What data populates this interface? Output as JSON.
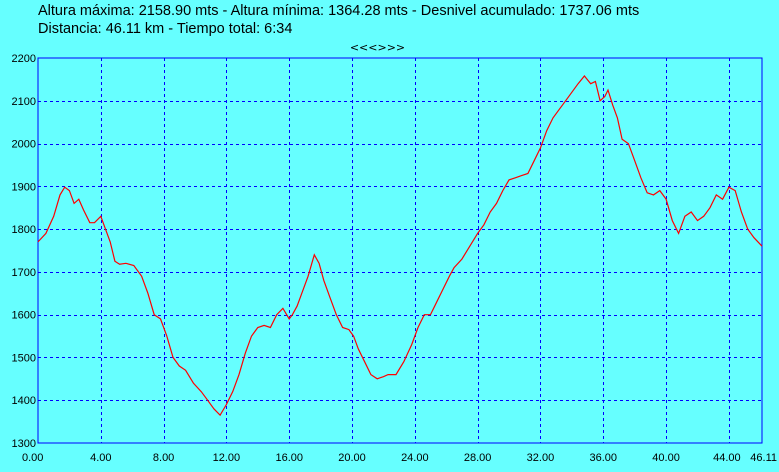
{
  "stats": {
    "line1": "Altura máxima: 2158.90 mts - Altura mínima: 1364.28 mts - Desnivel acumulado: 1737.06 mts",
    "line2": "Distancia: 46.11 km - Tiempo total: 6:34"
  },
  "nav": {
    "label": "<<<>>>"
  },
  "colors": {
    "background": "#66FFFF",
    "frame": "#0000FF",
    "grid": "#0000FF",
    "line": "#FF0000"
  },
  "chart_data": {
    "type": "line",
    "grid": true,
    "xlim": [
      0,
      46.11
    ],
    "ylim": [
      1300,
      2200
    ],
    "x_ticks": [
      "0.00",
      "4.00",
      "8.00",
      "12.00",
      "16.00",
      "20.00",
      "24.00",
      "28.00",
      "32.00",
      "36.00",
      "40.00",
      "44.00",
      "46.11"
    ],
    "x_tick_values": [
      0,
      4,
      8,
      12,
      16,
      20,
      24,
      28,
      32,
      36,
      40,
      44,
      46.11
    ],
    "y_ticks": [
      "1300",
      "1400",
      "1500",
      "1600",
      "1700",
      "1800",
      "1900",
      "2000",
      "2100",
      "2200"
    ],
    "y_tick_values": [
      1300,
      1400,
      1500,
      1600,
      1700,
      1800,
      1900,
      2000,
      2100,
      2200
    ],
    "series": [
      {
        "x": [
          0,
          0.5,
          1,
          1.4,
          1.7,
          2.0,
          2.3,
          2.6,
          2.9,
          3.3,
          3.6,
          4.0,
          4.2,
          4.6,
          4.9,
          5.2,
          5.6,
          6.1,
          6.6,
          7.0,
          7.4,
          7.8,
          8.2,
          8.6,
          9.0,
          9.4,
          9.9,
          10.4,
          10.8,
          11.2,
          11.6,
          12.0,
          12.4,
          12.8,
          13.2,
          13.6,
          14.0,
          14.4,
          14.8,
          15.2,
          15.6,
          16.0,
          16.2,
          16.5,
          16.8,
          17.2,
          17.6,
          17.9,
          18.2,
          18.6,
          19.0,
          19.4,
          19.8,
          20.1,
          20.4,
          20.8,
          21.2,
          21.6,
          22.0,
          22.3,
          22.8,
          23.3,
          23.8,
          24.2,
          24.6,
          25.0,
          25.4,
          25.8,
          26.2,
          26.5,
          27.0,
          27.5,
          28.0,
          28.4,
          28.8,
          29.2,
          29.6,
          30.0,
          30.4,
          30.8,
          31.2,
          31.6,
          32.0,
          32.4,
          32.8,
          33.2,
          33.6,
          34.0,
          34.4,
          34.8,
          35.2,
          35.5,
          35.8,
          36.1,
          36.3,
          36.6,
          36.9,
          37.2,
          37.6,
          38.0,
          38.4,
          38.8,
          39.2,
          39.6,
          40.0,
          40.4,
          40.8,
          41.2,
          41.6,
          42.0,
          42.4,
          42.8,
          43.2,
          43.6,
          44.0,
          44.4,
          44.8,
          45.2,
          45.6,
          46.11
        ],
        "y": [
          1770,
          1790,
          1830,
          1880,
          1898,
          1890,
          1860,
          1870,
          1845,
          1815,
          1815,
          1830,
          1810,
          1770,
          1725,
          1718,
          1720,
          1715,
          1690,
          1650,
          1600,
          1590,
          1550,
          1500,
          1480,
          1470,
          1440,
          1420,
          1400,
          1380,
          1365,
          1390,
          1420,
          1460,
          1510,
          1550,
          1570,
          1575,
          1570,
          1600,
          1615,
          1590,
          1600,
          1620,
          1650,
          1690,
          1740,
          1720,
          1680,
          1640,
          1600,
          1570,
          1565,
          1550,
          1520,
          1490,
          1460,
          1450,
          1455,
          1460,
          1460,
          1490,
          1530,
          1570,
          1600,
          1600,
          1630,
          1660,
          1690,
          1710,
          1730,
          1760,
          1790,
          1810,
          1840,
          1860,
          1890,
          1915,
          1920,
          1925,
          1930,
          1960,
          1990,
          2030,
          2060,
          2080,
          2100,
          2120,
          2140,
          2158,
          2140,
          2145,
          2100,
          2110,
          2125,
          2090,
          2060,
          2010,
          2000,
          1960,
          1920,
          1885,
          1880,
          1890,
          1870,
          1820,
          1790,
          1830,
          1840,
          1820,
          1830,
          1850,
          1880,
          1870,
          1898,
          1890,
          1840,
          1800,
          1780,
          1760
        ]
      }
    ]
  }
}
